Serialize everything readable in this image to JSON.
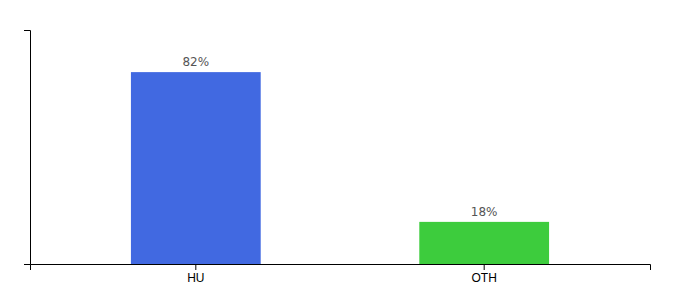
{
  "chart_data": {
    "type": "bar",
    "categories": [
      "HU",
      "OTH"
    ],
    "values": [
      82,
      18
    ],
    "colors": [
      "#4169e1",
      "#3dcc3d"
    ],
    "data_labels": true,
    "value_labels": [
      "82%",
      "18%"
    ],
    "ylim": [
      0,
      100
    ],
    "yticks": [],
    "tick_labels": "x",
    "grid": false
  }
}
